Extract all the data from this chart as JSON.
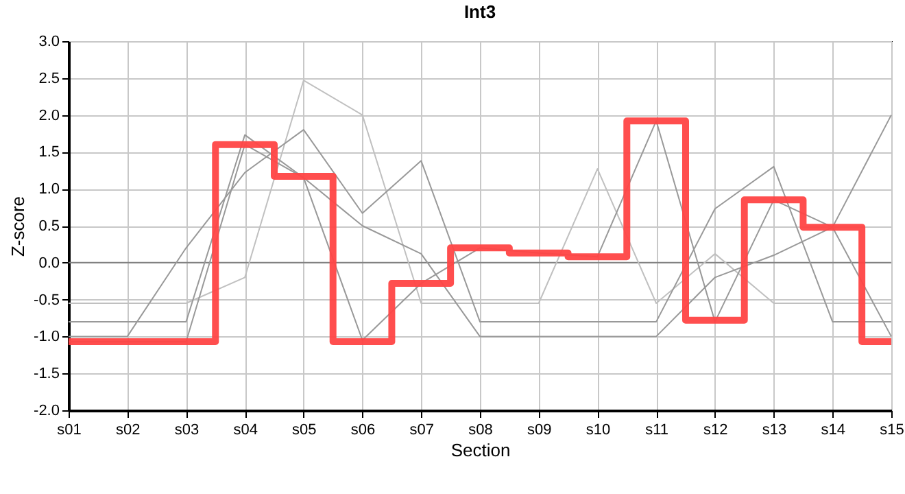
{
  "chart_data": {
    "type": "line",
    "title": "Int3",
    "xlabel": "Section",
    "ylabel": "Z-score",
    "categories": [
      "s01",
      "s02",
      "s03",
      "s04",
      "s05",
      "s06",
      "s07",
      "s08",
      "s09",
      "s10",
      "s11",
      "s12",
      "s13",
      "s14",
      "s15"
    ],
    "series": [
      {
        "color": "#c0c0c0",
        "values": [
          -0.55,
          -0.55,
          -0.55,
          -0.2,
          2.47,
          2.0,
          -0.55,
          -0.55,
          -0.55,
          1.27,
          -0.55,
          0.12,
          -0.55,
          -0.55,
          -0.55
        ]
      },
      {
        "color": "#999999",
        "values": [
          -1.07,
          -1.07,
          -1.07,
          1.6,
          1.15,
          -1.05,
          -0.28,
          0.2,
          0.13,
          0.08,
          1.92,
          -0.8,
          0.85,
          0.48,
          -1.0
        ]
      },
      {
        "color": "#999999",
        "values": [
          -1.0,
          -1.0,
          0.2,
          1.22,
          1.8,
          0.67,
          1.38,
          -0.8,
          -0.8,
          -0.8,
          -0.8,
          0.73,
          1.3,
          -0.8,
          -0.8
        ]
      },
      {
        "color": "#999999",
        "values": [
          -0.8,
          -0.8,
          -0.8,
          1.73,
          1.15,
          0.5,
          0.12,
          -1.0,
          -1.0,
          -1.0,
          -1.0,
          -0.2,
          0.1,
          0.48,
          2.0
        ]
      },
      {
        "type": "step",
        "color": "#ff4444",
        "values": [
          -1.07,
          -1.07,
          -1.07,
          1.6,
          1.17,
          -1.07,
          -0.28,
          0.2,
          0.13,
          0.08,
          1.92,
          -0.78,
          0.85,
          0.48,
          -1.07
        ]
      }
    ],
    "ylim": [
      -2,
      3
    ],
    "yticks": [
      {
        "value": -2,
        "label": "-2.0"
      },
      {
        "value": -1.5,
        "label": "-1.5"
      },
      {
        "value": -1,
        "label": "-1.0"
      },
      {
        "value": -0.5,
        "label": "-0.5"
      },
      {
        "value": 0,
        "label": "0.0"
      },
      {
        "value": 0.5,
        "label": "0.5"
      },
      {
        "value": 1,
        "label": "1.0"
      },
      {
        "value": 1.5,
        "label": "1.5"
      },
      {
        "value": 2,
        "label": "2.0"
      },
      {
        "value": 2.5,
        "label": "2.5"
      },
      {
        "value": 3,
        "label": "3.0"
      }
    ],
    "ref_lines": [
      {
        "axis": "y",
        "value": 0,
        "color": "#808080"
      }
    ],
    "grid": true
  }
}
